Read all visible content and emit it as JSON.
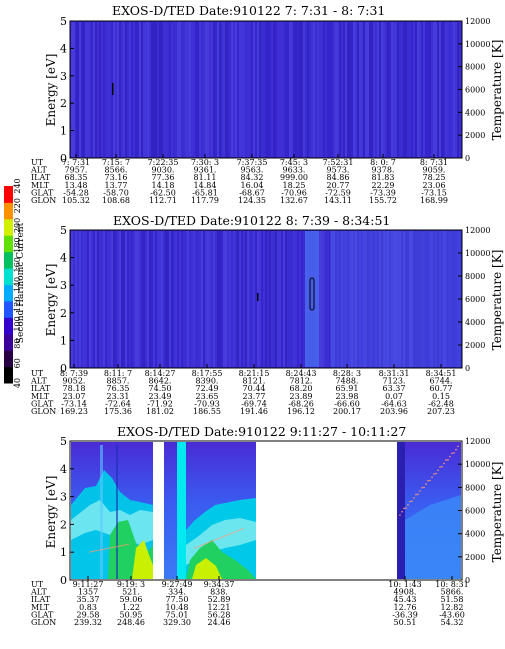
{
  "colorbar": {
    "title": "Second Harmonic Current",
    "ticks": [
      "40",
      "60",
      "80",
      "100",
      "120",
      "140",
      "160",
      "180",
      "200",
      "220",
      "240"
    ],
    "colors": [
      "#000000",
      "#2a0044",
      "#3b009a",
      "#3300cc",
      "#2255ff",
      "#00aaff",
      "#00e0d0",
      "#00c060",
      "#60e000",
      "#d0f000",
      "#ff9000",
      "#ff0000"
    ]
  },
  "panels": [
    {
      "title": "EXOS-D/TED   Date:910122  7: 7:31 -  8: 7:31",
      "ylabel": "Energy [eV]",
      "ylabel2": "Temperature [K]",
      "yticks": [
        "0",
        "1",
        "2",
        "3",
        "4",
        "5"
      ],
      "yticks2": [
        "0",
        "2000",
        "4000",
        "6000",
        "8000",
        "10000",
        "12000"
      ],
      "ut": [
        "7: 7:31",
        "7:15: 7",
        "7:22:35",
        "7:30: 3",
        "7:37:35",
        "7:45: 3",
        "7:52:31",
        "8: 0: 7",
        "8: 7:31"
      ],
      "rows": [
        {
          "label": "ALT",
          "values": [
            "7957.",
            "8566.",
            "9030.",
            "9361.",
            "9563.",
            "9633.",
            "9573.",
            "9378.",
            "9059."
          ]
        },
        {
          "label": "ILAT",
          "values": [
            "68.35",
            "73.16",
            "77.36",
            "81.11",
            "84.32",
            "999.00",
            "84.86",
            "81.83",
            "78.25"
          ]
        },
        {
          "label": "MLT",
          "values": [
            "13.48",
            "13.77",
            "14.18",
            "14.84",
            "16.04",
            "18.25",
            "20.77",
            "22.29",
            "23.06"
          ]
        },
        {
          "label": "GLAT",
          "values": [
            "-54.28",
            "-58.70",
            "-62.50",
            "-65.81",
            "-68.67",
            "-70.96",
            "-72.59",
            "-73.39",
            "-73.15"
          ]
        },
        {
          "label": "GLON",
          "values": [
            "105.32",
            "108.68",
            "112.71",
            "117.79",
            "124.35",
            "132.67",
            "143.11",
            "155.72",
            "168.99"
          ]
        }
      ]
    },
    {
      "title": "EXOS-D/TED   Date:910122  8: 7:39 -  8:34:51",
      "ylabel": "Energy [eV]",
      "ylabel2": "Temperature [K]",
      "yticks": [
        "0",
        "1",
        "2",
        "3",
        "4",
        "5"
      ],
      "yticks2": [
        "0",
        "2000",
        "4000",
        "6000",
        "8000",
        "10000",
        "12000"
      ],
      "ut": [
        "8: 7:39",
        "8:11: 7",
        "8:14:27",
        "8:17:55",
        "8:21:15",
        "8:24:43",
        "8:28: 3",
        "8:31:31",
        "8:34:51"
      ],
      "rows": [
        {
          "label": "ALT",
          "values": [
            "9052.",
            "8857.",
            "8642.",
            "8390.",
            "8121.",
            "7812.",
            "7488.",
            "7123.",
            "6744."
          ]
        },
        {
          "label": "ILAT",
          "values": [
            "78.18",
            "76.35",
            "74.50",
            "72.49",
            "70.44",
            "68.20",
            "65.91",
            "63.37",
            "60.77"
          ]
        },
        {
          "label": "MLT",
          "values": [
            "23.07",
            "23.31",
            "23.49",
            "23.65",
            "23.77",
            "23.89",
            "23.98",
            "0.07",
            "0.15"
          ]
        },
        {
          "label": "GLAT",
          "values": [
            "-73.14",
            "-72.64",
            "-71.92",
            "-70.93",
            "-69.74",
            "-68.26",
            "-66.60",
            "-64.63",
            "-62.48"
          ]
        },
        {
          "label": "GLON",
          "values": [
            "169.23",
            "175.36",
            "181.02",
            "186.55",
            "191.46",
            "196.12",
            "200.17",
            "203.96",
            "207.23"
          ]
        }
      ]
    },
    {
      "title": "EXOS-D/TED   Date:910122  9:11:27 - 10:11:27",
      "ylabel": "Energy [eV]",
      "ylabel2": "Temperature [K]",
      "yticks": [
        "0",
        "1",
        "2",
        "3",
        "4",
        "5"
      ],
      "yticks2": [
        "0",
        "2000",
        "4000",
        "6000",
        "8000",
        "10000",
        "12000"
      ],
      "ut": [
        "9:11:27",
        "9:19: 3",
        "9:27:49",
        "9:34:37",
        "10: 1:43",
        "10: 8:31"
      ],
      "rows": [
        {
          "label": "ALT",
          "values": [
            "1357",
            "521.",
            "334.",
            "838.",
            "4908.",
            "5866."
          ]
        },
        {
          "label": "ILAT",
          "values": [
            "35.37",
            "59.06",
            "77.50",
            "52.89",
            "45.43",
            "51.58"
          ]
        },
        {
          "label": "MLT",
          "values": [
            "0.83",
            "1.22",
            "10.48",
            "12.21",
            "12.76",
            "12.82"
          ]
        },
        {
          "label": "GLAT",
          "values": [
            "29.58",
            "50.95",
            "75.01",
            "56.28",
            "-36.39",
            "-43.60"
          ]
        },
        {
          "label": "GLON",
          "values": [
            "239.32",
            "248.46",
            "329.30",
            "24.46",
            "50.51",
            "54.32"
          ]
        }
      ]
    }
  ],
  "chart_data": [
    {
      "type": "heatmap",
      "title": "EXOS-D/TED   Date:910122  7: 7:31 -  8: 7:31",
      "ylabel": "Energy [eV]",
      "ylim": [
        0,
        5
      ],
      "ylabel2": "Temperature [K]",
      "ylim2": [
        0,
        12000
      ],
      "x": [
        "7: 7:31",
        "7:15: 7",
        "7:22:35",
        "7:30: 3",
        "7:37:35",
        "7:45: 3",
        "7:52:31",
        "8: 0: 7",
        "8: 7:31"
      ]
    },
    {
      "type": "heatmap",
      "title": "EXOS-D/TED   Date:910122  8: 7:39 -  8:34:51",
      "ylabel": "Energy [eV]",
      "ylim": [
        0,
        5
      ],
      "ylabel2": "Temperature [K]",
      "ylim2": [
        0,
        12000
      ],
      "x": [
        "8: 7:39",
        "8:11: 7",
        "8:14:27",
        "8:17:55",
        "8:21:15",
        "8:24:43",
        "8:28: 3",
        "8:31:31",
        "8:34:51"
      ]
    },
    {
      "type": "heatmap",
      "title": "EXOS-D/TED   Date:910122  9:11:27 - 10:11:27",
      "ylabel": "Energy [eV]",
      "ylim": [
        0,
        5
      ],
      "ylabel2": "Temperature [K]",
      "ylim2": [
        0,
        12000
      ],
      "x": [
        "9:11:27",
        "9:19: 3",
        "9:27:49",
        "9:34:37",
        "10: 1:43",
        "10: 8:31"
      ]
    }
  ]
}
